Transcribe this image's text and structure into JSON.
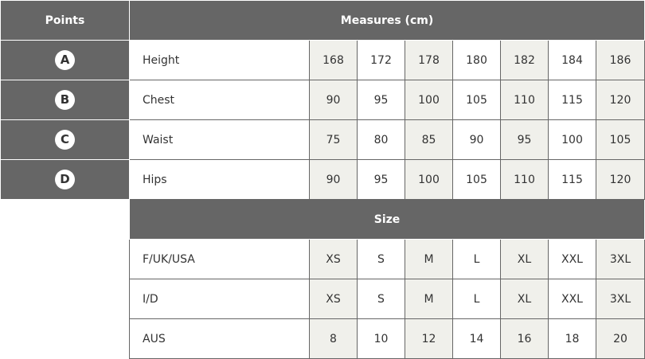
{
  "header": {
    "points": "Points",
    "measures": "Measures (cm)"
  },
  "shade_color": "#f0f0eb",
  "header_color": "#666666",
  "measures": [
    {
      "point": "A",
      "label": "Height",
      "values": [
        "168",
        "172",
        "178",
        "180",
        "182",
        "184",
        "186"
      ]
    },
    {
      "point": "B",
      "label": "Chest",
      "values": [
        "90",
        "95",
        "100",
        "105",
        "110",
        "115",
        "120"
      ]
    },
    {
      "point": "C",
      "label": "Waist",
      "values": [
        "75",
        "80",
        "85",
        "90",
        "95",
        "100",
        "105"
      ]
    },
    {
      "point": "D",
      "label": "Hips",
      "values": [
        "90",
        "95",
        "100",
        "105",
        "110",
        "115",
        "120"
      ]
    }
  ],
  "size_header": "Size",
  "sizes": [
    {
      "label": "F/UK/USA",
      "values": [
        "XS",
        "S",
        "M",
        "L",
        "XL",
        "XXL",
        "3XL"
      ]
    },
    {
      "label": "I/D",
      "values": [
        "XS",
        "S",
        "M",
        "L",
        "XL",
        "XXL",
        "3XL"
      ]
    },
    {
      "label": "AUS",
      "values": [
        "8",
        "10",
        "12",
        "14",
        "16",
        "18",
        "20"
      ]
    }
  ]
}
